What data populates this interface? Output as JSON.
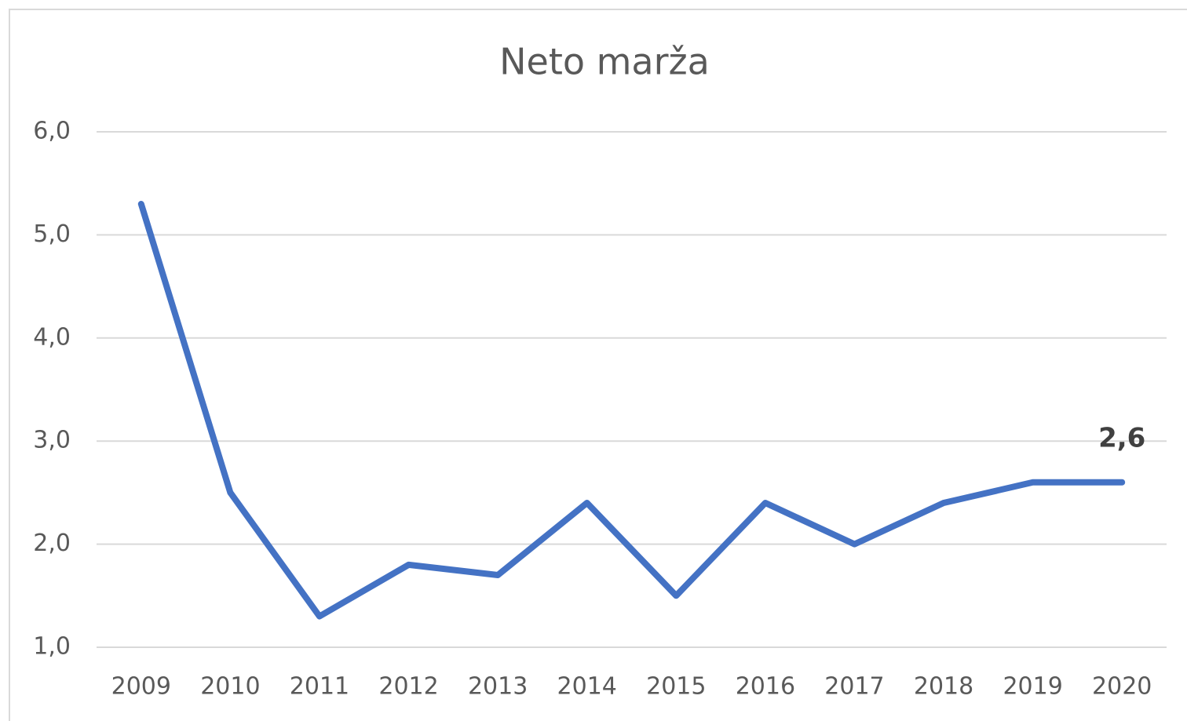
{
  "chart_data": {
    "type": "line",
    "title": "Neto marža",
    "categories": [
      "2009",
      "2010",
      "2011",
      "2012",
      "2013",
      "2014",
      "2015",
      "2016",
      "2017",
      "2018",
      "2019",
      "2020"
    ],
    "series": [
      {
        "name": "Neto marža",
        "color": "#4472c4",
        "values": [
          5.3,
          2.5,
          1.3,
          1.8,
          1.7,
          2.4,
          1.5,
          2.4,
          2.0,
          2.4,
          2.6,
          2.6
        ],
        "value_labels": [
          null,
          null,
          null,
          null,
          null,
          null,
          null,
          null,
          null,
          null,
          null,
          "2,6"
        ]
      }
    ],
    "ylim": [
      1.0,
      6.0
    ],
    "yticks": [
      {
        "value": 1.0,
        "label": "1,0"
      },
      {
        "value": 2.0,
        "label": "2,0"
      },
      {
        "value": 3.0,
        "label": "3,0"
      },
      {
        "value": 4.0,
        "label": "4,0"
      },
      {
        "value": 5.0,
        "label": "5,0"
      },
      {
        "value": 6.0,
        "label": "6,0"
      }
    ],
    "grid": true
  }
}
